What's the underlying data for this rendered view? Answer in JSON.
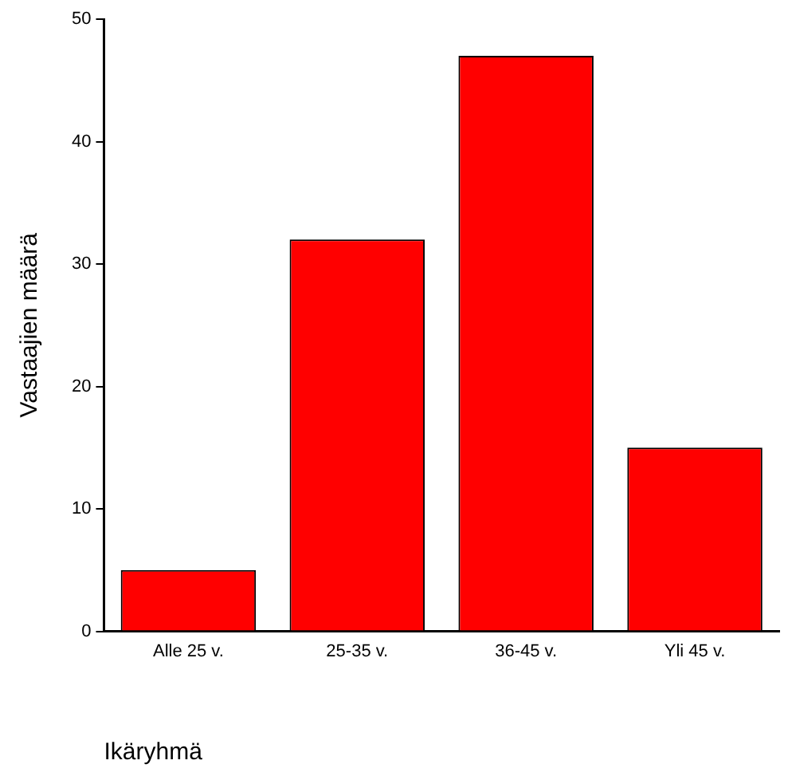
{
  "chart_data": {
    "type": "bar",
    "xlabel": "Ikäryhmä",
    "ylabel": "Vastaajien määrä",
    "categories": [
      "Alle 25 v.",
      "25-35 v.",
      "36-45 v.",
      "Yli 45 v."
    ],
    "values": [
      5,
      32,
      47,
      15
    ],
    "color": "#ff0000",
    "ylim": [
      0,
      50
    ],
    "yticks": [
      0,
      10,
      20,
      30,
      40,
      50
    ],
    "grid": false,
    "legend": false
  }
}
